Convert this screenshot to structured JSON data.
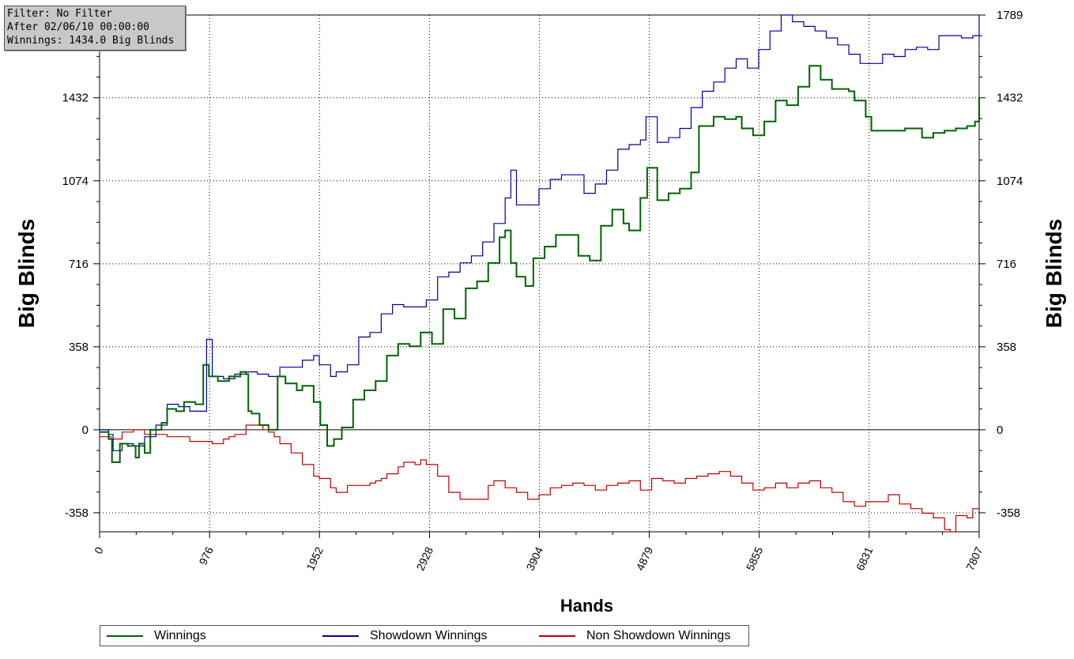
{
  "info_box": {
    "filter": "Filter: No Filter",
    "after": "After 02/06/10 00:00:00",
    "winnings": "Winnings: 1434.0 Big Blinds"
  },
  "legend": [
    {
      "label": "Winnings",
      "color": "#006400"
    },
    {
      "label": "Showdown Winnings",
      "color": "#0000a0"
    },
    {
      "label": "Non Showdown Winnings",
      "color": "#c00000"
    }
  ],
  "chart_data": {
    "type": "line",
    "xlabel": "Hands",
    "ylabel": "Big Blinds",
    "xlim": [
      0,
      7807
    ],
    "ylim": [
      -440,
      1789
    ],
    "x_ticks": [
      0,
      976,
      1952,
      2928,
      3904,
      4879,
      5855,
      6831,
      7807
    ],
    "y_ticks": [
      -358,
      0,
      358,
      716,
      1074,
      1432,
      1789
    ],
    "grid": true,
    "legend_position": "bottom",
    "series": [
      {
        "name": "Winnings",
        "color": "#006400",
        "points": [
          [
            0,
            -10
          ],
          [
            80,
            -40
          ],
          [
            110,
            -140
          ],
          [
            180,
            -60
          ],
          [
            250,
            -70
          ],
          [
            320,
            -120
          ],
          [
            350,
            -60
          ],
          [
            400,
            -100
          ],
          [
            450,
            0
          ],
          [
            550,
            30
          ],
          [
            600,
            90
          ],
          [
            680,
            80
          ],
          [
            750,
            120
          ],
          [
            850,
            110
          ],
          [
            920,
            280
          ],
          [
            970,
            230
          ],
          [
            1050,
            210
          ],
          [
            1150,
            230
          ],
          [
            1250,
            250
          ],
          [
            1300,
            240
          ],
          [
            1320,
            80
          ],
          [
            1350,
            70
          ],
          [
            1420,
            20
          ],
          [
            1500,
            0
          ],
          [
            1580,
            230
          ],
          [
            1650,
            200
          ],
          [
            1750,
            170
          ],
          [
            1800,
            190
          ],
          [
            1900,
            120
          ],
          [
            1960,
            20
          ],
          [
            2020,
            -70
          ],
          [
            2080,
            -40
          ],
          [
            2150,
            10
          ],
          [
            2250,
            130
          ],
          [
            2350,
            170
          ],
          [
            2450,
            210
          ],
          [
            2550,
            320
          ],
          [
            2650,
            370
          ],
          [
            2750,
            360
          ],
          [
            2850,
            420
          ],
          [
            2950,
            370
          ],
          [
            3050,
            520
          ],
          [
            3150,
            480
          ],
          [
            3250,
            610
          ],
          [
            3350,
            640
          ],
          [
            3450,
            720
          ],
          [
            3550,
            830
          ],
          [
            3600,
            860
          ],
          [
            3650,
            720
          ],
          [
            3700,
            660
          ],
          [
            3780,
            620
          ],
          [
            3850,
            740
          ],
          [
            3950,
            790
          ],
          [
            4050,
            840
          ],
          [
            4150,
            840
          ],
          [
            4250,
            750
          ],
          [
            4350,
            730
          ],
          [
            4450,
            880
          ],
          [
            4550,
            950
          ],
          [
            4650,
            890
          ],
          [
            4700,
            860
          ],
          [
            4800,
            1000
          ],
          [
            4860,
            1130
          ],
          [
            4950,
            990
          ],
          [
            5050,
            1020
          ],
          [
            5150,
            1040
          ],
          [
            5250,
            1110
          ],
          [
            5320,
            1310
          ],
          [
            5450,
            1350
          ],
          [
            5550,
            1340
          ],
          [
            5650,
            1350
          ],
          [
            5700,
            1300
          ],
          [
            5800,
            1270
          ],
          [
            5900,
            1330
          ],
          [
            6000,
            1420
          ],
          [
            6100,
            1400
          ],
          [
            6200,
            1480
          ],
          [
            6300,
            1570
          ],
          [
            6400,
            1510
          ],
          [
            6500,
            1470
          ],
          [
            6650,
            1460
          ],
          [
            6700,
            1420
          ],
          [
            6800,
            1350
          ],
          [
            6850,
            1290
          ],
          [
            6950,
            1290
          ],
          [
            7050,
            1290
          ],
          [
            7150,
            1300
          ],
          [
            7300,
            1260
          ],
          [
            7400,
            1280
          ],
          [
            7500,
            1290
          ],
          [
            7600,
            1300
          ],
          [
            7700,
            1310
          ],
          [
            7770,
            1330
          ],
          [
            7807,
            1434
          ]
        ]
      },
      {
        "name": "Showdown Winnings",
        "color": "#0000a0",
        "points": [
          [
            0,
            0
          ],
          [
            80,
            -20
          ],
          [
            120,
            -90
          ],
          [
            200,
            -60
          ],
          [
            300,
            -70
          ],
          [
            400,
            -30
          ],
          [
            500,
            20
          ],
          [
            600,
            110
          ],
          [
            700,
            100
          ],
          [
            800,
            80
          ],
          [
            950,
            390
          ],
          [
            1000,
            230
          ],
          [
            1100,
            220
          ],
          [
            1200,
            240
          ],
          [
            1300,
            250
          ],
          [
            1400,
            240
          ],
          [
            1500,
            230
          ],
          [
            1600,
            270
          ],
          [
            1700,
            270
          ],
          [
            1800,
            300
          ],
          [
            1900,
            320
          ],
          [
            1950,
            280
          ],
          [
            2050,
            230
          ],
          [
            2100,
            250
          ],
          [
            2200,
            280
          ],
          [
            2300,
            400
          ],
          [
            2400,
            420
          ],
          [
            2500,
            500
          ],
          [
            2600,
            540
          ],
          [
            2700,
            530
          ],
          [
            2800,
            530
          ],
          [
            2900,
            560
          ],
          [
            3000,
            660
          ],
          [
            3100,
            680
          ],
          [
            3200,
            720
          ],
          [
            3300,
            750
          ],
          [
            3400,
            810
          ],
          [
            3500,
            890
          ],
          [
            3600,
            1000
          ],
          [
            3650,
            1120
          ],
          [
            3700,
            970
          ],
          [
            3800,
            970
          ],
          [
            3900,
            1040
          ],
          [
            4000,
            1080
          ],
          [
            4100,
            1100
          ],
          [
            4200,
            1100
          ],
          [
            4300,
            1020
          ],
          [
            4400,
            1060
          ],
          [
            4500,
            1120
          ],
          [
            4600,
            1210
          ],
          [
            4700,
            1230
          ],
          [
            4800,
            1250
          ],
          [
            4850,
            1350
          ],
          [
            4950,
            1240
          ],
          [
            5050,
            1260
          ],
          [
            5150,
            1300
          ],
          [
            5250,
            1390
          ],
          [
            5350,
            1460
          ],
          [
            5450,
            1500
          ],
          [
            5550,
            1560
          ],
          [
            5650,
            1600
          ],
          [
            5750,
            1560
          ],
          [
            5850,
            1640
          ],
          [
            5950,
            1720
          ],
          [
            6050,
            1789
          ],
          [
            6150,
            1760
          ],
          [
            6250,
            1740
          ],
          [
            6350,
            1720
          ],
          [
            6450,
            1690
          ],
          [
            6550,
            1660
          ],
          [
            6650,
            1620
          ],
          [
            6750,
            1580
          ],
          [
            6850,
            1580
          ],
          [
            6950,
            1620
          ],
          [
            7050,
            1610
          ],
          [
            7150,
            1640
          ],
          [
            7250,
            1650
          ],
          [
            7350,
            1640
          ],
          [
            7450,
            1700
          ],
          [
            7550,
            1700
          ],
          [
            7650,
            1690
          ],
          [
            7750,
            1700
          ],
          [
            7807,
            1789
          ]
        ]
      },
      {
        "name": "Non Showdown Winnings",
        "color": "#c00000",
        "points": [
          [
            0,
            -30
          ],
          [
            100,
            -40
          ],
          [
            200,
            -10
          ],
          [
            300,
            0
          ],
          [
            400,
            -20
          ],
          [
            500,
            -20
          ],
          [
            600,
            -30
          ],
          [
            700,
            -30
          ],
          [
            800,
            -50
          ],
          [
            900,
            -50
          ],
          [
            1000,
            -60
          ],
          [
            1100,
            -40
          ],
          [
            1150,
            -30
          ],
          [
            1200,
            -20
          ],
          [
            1300,
            20
          ],
          [
            1400,
            20
          ],
          [
            1450,
            0
          ],
          [
            1500,
            -10
          ],
          [
            1550,
            -30
          ],
          [
            1600,
            -60
          ],
          [
            1700,
            -100
          ],
          [
            1800,
            -150
          ],
          [
            1900,
            -200
          ],
          [
            1950,
            -210
          ],
          [
            2050,
            -250
          ],
          [
            2100,
            -270
          ],
          [
            2200,
            -240
          ],
          [
            2300,
            -240
          ],
          [
            2400,
            -230
          ],
          [
            2450,
            -220
          ],
          [
            2500,
            -210
          ],
          [
            2550,
            -190
          ],
          [
            2650,
            -160
          ],
          [
            2700,
            -140
          ],
          [
            2800,
            -150
          ],
          [
            2850,
            -130
          ],
          [
            2900,
            -150
          ],
          [
            3000,
            -200
          ],
          [
            3100,
            -270
          ],
          [
            3200,
            -300
          ],
          [
            3300,
            -300
          ],
          [
            3400,
            -300
          ],
          [
            3450,
            -240
          ],
          [
            3500,
            -220
          ],
          [
            3600,
            -250
          ],
          [
            3700,
            -270
          ],
          [
            3800,
            -300
          ],
          [
            3900,
            -280
          ],
          [
            4000,
            -250
          ],
          [
            4100,
            -240
          ],
          [
            4200,
            -230
          ],
          [
            4300,
            -240
          ],
          [
            4400,
            -260
          ],
          [
            4500,
            -240
          ],
          [
            4600,
            -230
          ],
          [
            4700,
            -220
          ],
          [
            4800,
            -260
          ],
          [
            4900,
            -210
          ],
          [
            5000,
            -220
          ],
          [
            5100,
            -230
          ],
          [
            5200,
            -210
          ],
          [
            5300,
            -200
          ],
          [
            5400,
            -190
          ],
          [
            5500,
            -180
          ],
          [
            5600,
            -200
          ],
          [
            5700,
            -230
          ],
          [
            5800,
            -260
          ],
          [
            5900,
            -250
          ],
          [
            6000,
            -230
          ],
          [
            6100,
            -250
          ],
          [
            6200,
            -230
          ],
          [
            6300,
            -220
          ],
          [
            6400,
            -250
          ],
          [
            6500,
            -270
          ],
          [
            6600,
            -310
          ],
          [
            6700,
            -330
          ],
          [
            6800,
            -310
          ],
          [
            6900,
            -310
          ],
          [
            7000,
            -280
          ],
          [
            7100,
            -320
          ],
          [
            7200,
            -340
          ],
          [
            7300,
            -360
          ],
          [
            7400,
            -380
          ],
          [
            7500,
            -430
          ],
          [
            7550,
            -440
          ],
          [
            7600,
            -370
          ],
          [
            7700,
            -380
          ],
          [
            7750,
            -340
          ],
          [
            7807,
            -350
          ]
        ]
      }
    ]
  }
}
